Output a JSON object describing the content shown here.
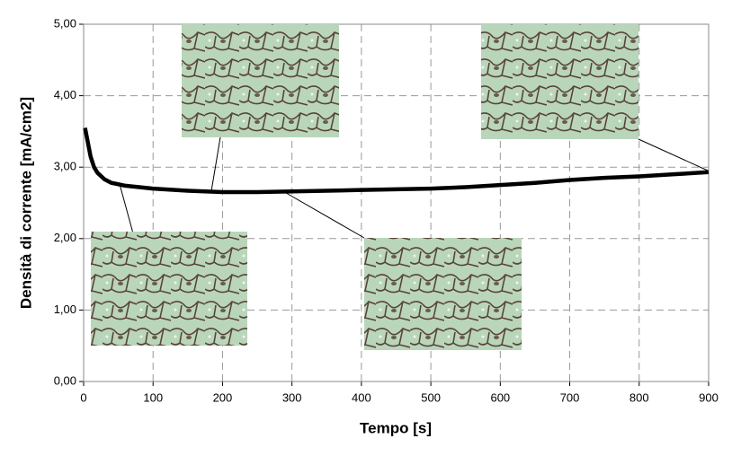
{
  "chart_data": {
    "type": "line",
    "x_label": "Tempo [s]",
    "y_label": "Densità di corrente [mA/cm2]",
    "x": [
      2,
      5,
      10,
      15,
      20,
      30,
      40,
      60,
      80,
      100,
      150,
      200,
      250,
      300,
      350,
      400,
      450,
      500,
      550,
      600,
      650,
      700,
      750,
      800,
      850,
      900
    ],
    "series": [
      {
        "color": "#000000",
        "values": [
          3.55,
          3.4,
          3.15,
          3.0,
          2.92,
          2.83,
          2.78,
          2.74,
          2.72,
          2.7,
          2.67,
          2.65,
          2.65,
          2.66,
          2.67,
          2.68,
          2.69,
          2.7,
          2.72,
          2.75,
          2.78,
          2.82,
          2.85,
          2.87,
          2.9,
          2.93
        ]
      }
    ],
    "xlim": [
      0,
      900
    ],
    "xticks": [
      0,
      100,
      200,
      300,
      400,
      500,
      600,
      700,
      800,
      900
    ],
    "ylim": [
      0,
      5
    ],
    "yticks": [
      {
        "value": 0,
        "label": "0,00"
      },
      {
        "value": 1,
        "label": "1,00"
      },
      {
        "value": 2,
        "label": "2,00"
      },
      {
        "value": 3,
        "label": "3,00"
      },
      {
        "value": 4,
        "label": "4,00"
      },
      {
        "value": 5,
        "label": "5,00"
      }
    ],
    "grid": true
  }
}
